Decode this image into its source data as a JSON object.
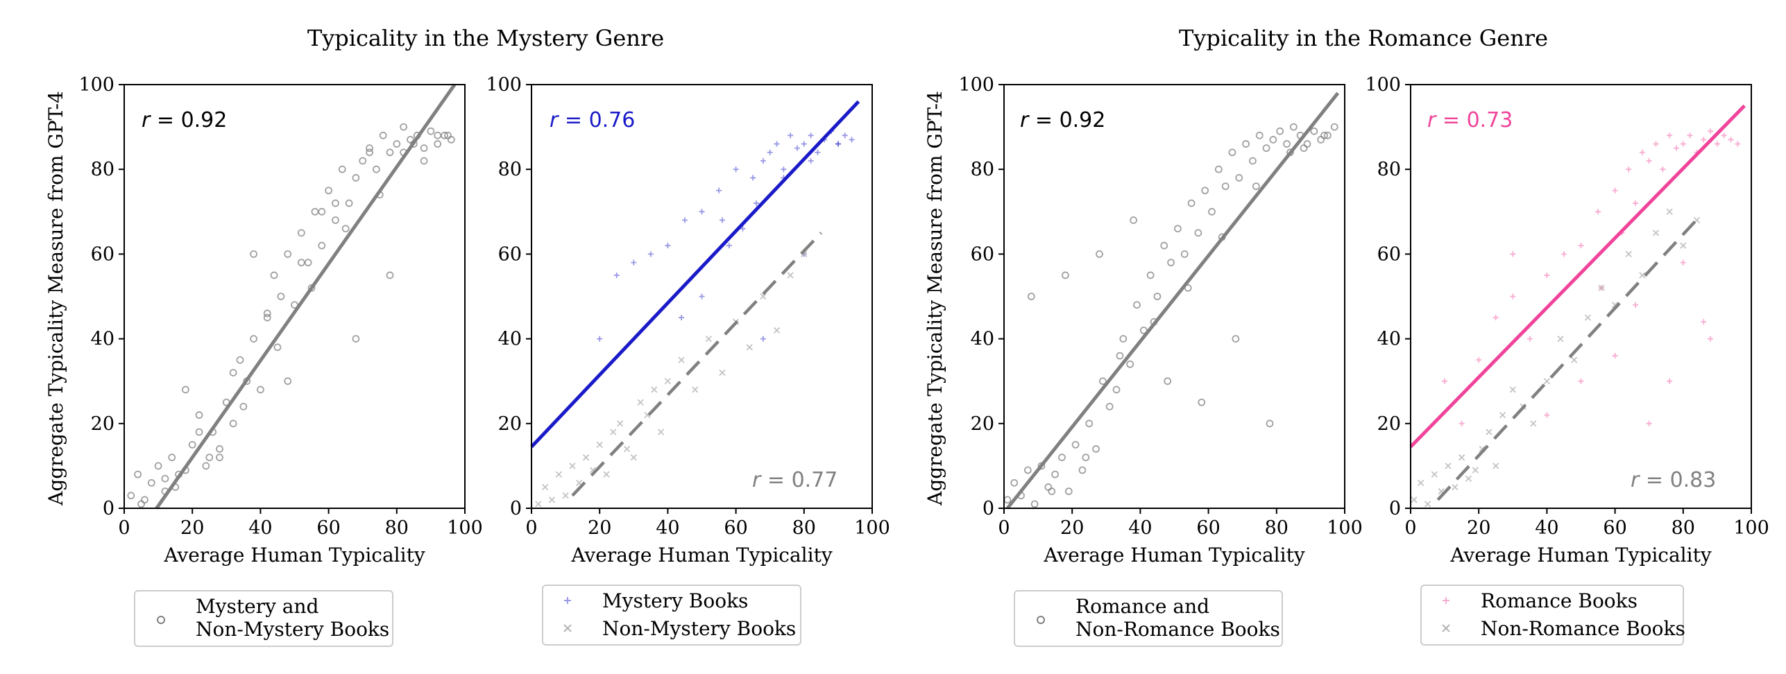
{
  "figure": {
    "mystery_title": "Typicality in the Mystery Genre",
    "romance_title": "Typicality in the Romance Genre",
    "ylabel": "Aggregate Typicality Measure from GPT-4",
    "xlabel": "Average Human Typicality"
  },
  "colors": {
    "gray": "#808080",
    "light_gray": "#b4b4b4",
    "mystery_blue": "#1a1ac8",
    "romance_pink": "#f0449a"
  },
  "chart_data": [
    {
      "type": "scatter",
      "panel": "mystery-all",
      "xlabel": "Average Human Typicality",
      "ylabel": "Aggregate Typicality Measure from GPT-4",
      "xlim": [
        0,
        100
      ],
      "ylim": [
        0,
        100
      ],
      "xticks": [
        0,
        20,
        40,
        60,
        80,
        100
      ],
      "yticks": [
        0,
        20,
        40,
        60,
        80,
        100
      ],
      "r_label": "r = 0.92",
      "legend": [
        "Mystery and",
        "Non-Mystery Books"
      ],
      "series": [
        {
          "marker": "circle",
          "color": "#808080",
          "fit": [
            9.5,
            0,
            97,
            100
          ],
          "x": [
            2,
            4,
            6,
            8,
            10,
            12,
            14,
            16,
            18,
            20,
            22,
            24,
            26,
            28,
            30,
            32,
            34,
            36,
            38,
            40,
            42,
            44,
            46,
            48,
            50,
            52,
            54,
            56,
            58,
            60,
            62,
            64,
            66,
            68,
            70,
            72,
            74,
            76,
            78,
            80,
            82,
            84,
            86,
            88,
            90,
            92,
            94,
            96,
            5,
            15,
            25,
            35,
            45,
            55,
            65,
            75,
            85,
            95,
            12,
            22,
            32,
            42,
            52,
            62,
            72,
            82,
            92,
            18,
            28,
            38,
            48,
            58,
            68,
            78,
            88
          ],
          "y": [
            3,
            8,
            2,
            6,
            10,
            4,
            12,
            8,
            9,
            15,
            22,
            10,
            18,
            12,
            25,
            20,
            35,
            30,
            40,
            28,
            45,
            55,
            50,
            60,
            48,
            65,
            58,
            70,
            62,
            75,
            68,
            80,
            72,
            78,
            82,
            85,
            80,
            88,
            84,
            86,
            90,
            87,
            88,
            85,
            89,
            86,
            88,
            87,
            1,
            5,
            12,
            24,
            38,
            52,
            66,
            74,
            86,
            88,
            7,
            18,
            32,
            46,
            58,
            72,
            84,
            84,
            88,
            28,
            14,
            60,
            30,
            70,
            40,
            55,
            82
          ]
        }
      ]
    },
    {
      "type": "scatter",
      "panel": "mystery-split",
      "xlabel": "Average Human Typicality",
      "xlim": [
        0,
        100
      ],
      "ylim": [
        0,
        100
      ],
      "xticks": [
        0,
        20,
        40,
        60,
        80,
        100
      ],
      "yticks": [
        0,
        20,
        40,
        60,
        80,
        100
      ],
      "r_labels": [
        "r = 0.76",
        "r = 0.77"
      ],
      "series": [
        {
          "name": "Mystery Books",
          "marker": "plus",
          "color": "#1a1ac8",
          "fit": [
            0,
            14.5,
            96,
            96
          ],
          "x": [
            20,
            25,
            30,
            35,
            40,
            45,
            50,
            55,
            60,
            62,
            65,
            68,
            70,
            72,
            74,
            76,
            78,
            80,
            82,
            84,
            86,
            88,
            90,
            92,
            94,
            50,
            58,
            66,
            74,
            82,
            90,
            44,
            56,
            68,
            80
          ],
          "y": [
            40,
            55,
            58,
            60,
            62,
            68,
            70,
            75,
            80,
            66,
            78,
            82,
            84,
            86,
            80,
            88,
            85,
            86,
            88,
            84,
            87,
            89,
            86,
            88,
            87,
            50,
            62,
            72,
            78,
            82,
            86,
            45,
            68,
            40,
            60
          ]
        },
        {
          "name": "Non-Mystery Books",
          "marker": "x",
          "color": "#b4b4b4",
          "fit": [
            12,
            3,
            85,
            65
          ],
          "x": [
            2,
            4,
            6,
            8,
            10,
            12,
            14,
            16,
            18,
            20,
            22,
            24,
            26,
            28,
            30,
            32,
            34,
            36,
            38,
            40,
            44,
            48,
            52,
            56,
            60,
            64,
            68,
            72,
            76,
            80
          ],
          "y": [
            1,
            5,
            2,
            8,
            3,
            10,
            6,
            12,
            9,
            15,
            8,
            18,
            20,
            14,
            12,
            25,
            22,
            28,
            18,
            30,
            35,
            28,
            40,
            32,
            44,
            38,
            50,
            42,
            55,
            60
          ]
        }
      ]
    },
    {
      "type": "scatter",
      "panel": "romance-all",
      "xlabel": "Average Human Typicality",
      "ylabel": "Aggregate Typicality Measure from GPT-4",
      "xlim": [
        0,
        100
      ],
      "ylim": [
        0,
        100
      ],
      "xticks": [
        0,
        20,
        40,
        60,
        80,
        100
      ],
      "yticks": [
        0,
        20,
        40,
        60,
        80,
        100
      ],
      "r_label": "r = 0.92",
      "legend": [
        "Romance and",
        "Non-Romance Books"
      ],
      "series": [
        {
          "marker": "circle",
          "color": "#808080",
          "fit": [
            1,
            0,
            98,
            98
          ],
          "x": [
            1,
            3,
            5,
            7,
            9,
            11,
            13,
            15,
            17,
            19,
            21,
            23,
            25,
            27,
            29,
            31,
            33,
            35,
            37,
            39,
            41,
            43,
            45,
            47,
            49,
            51,
            53,
            55,
            57,
            59,
            61,
            63,
            65,
            67,
            69,
            71,
            73,
            75,
            77,
            79,
            81,
            83,
            85,
            87,
            89,
            91,
            93,
            95,
            97,
            8,
            18,
            28,
            38,
            48,
            58,
            68,
            78,
            88,
            14,
            24,
            34,
            44,
            54,
            64,
            74,
            84,
            94
          ],
          "y": [
            2,
            6,
            3,
            9,
            1,
            10,
            5,
            8,
            12,
            4,
            15,
            9,
            20,
            14,
            30,
            24,
            28,
            40,
            34,
            48,
            42,
            55,
            50,
            62,
            58,
            66,
            60,
            72,
            65,
            75,
            70,
            80,
            76,
            84,
            78,
            86,
            82,
            88,
            85,
            87,
            89,
            86,
            90,
            88,
            86,
            89,
            87,
            88,
            90,
            50,
            55,
            60,
            68,
            30,
            25,
            40,
            20,
            85,
            4,
            12,
            36,
            44,
            52,
            64,
            76,
            84,
            88
          ]
        }
      ]
    },
    {
      "type": "scatter",
      "panel": "romance-split",
      "xlabel": "Average Human Typicality",
      "xlim": [
        0,
        100
      ],
      "ylim": [
        0,
        100
      ],
      "xticks": [
        0,
        20,
        40,
        60,
        80,
        100
      ],
      "yticks": [
        0,
        20,
        40,
        60,
        80,
        100
      ],
      "r_labels": [
        "r = 0.73",
        "r = 0.83"
      ],
      "series": [
        {
          "name": "Romance Books",
          "marker": "plus",
          "color": "#f0449a",
          "fit": [
            0,
            14.5,
            98,
            95
          ],
          "x": [
            10,
            15,
            20,
            25,
            30,
            35,
            40,
            45,
            50,
            55,
            60,
            62,
            64,
            66,
            68,
            70,
            72,
            74,
            76,
            78,
            80,
            82,
            84,
            86,
            88,
            90,
            92,
            94,
            96,
            40,
            50,
            60,
            70,
            80,
            88,
            30,
            56,
            66,
            76,
            86
          ],
          "y": [
            30,
            20,
            35,
            45,
            50,
            40,
            55,
            60,
            62,
            70,
            75,
            65,
            80,
            72,
            84,
            82,
            86,
            80,
            88,
            85,
            86,
            88,
            84,
            87,
            89,
            86,
            88,
            87,
            86,
            22,
            30,
            36,
            20,
            58,
            40,
            60,
            52,
            48,
            30,
            44
          ]
        },
        {
          "name": "Non-Romance Books",
          "marker": "x",
          "color": "#b4b4b4",
          "fit": [
            8,
            2,
            85,
            69
          ],
          "x": [
            1,
            3,
            5,
            7,
            9,
            11,
            13,
            15,
            17,
            19,
            21,
            23,
            25,
            27,
            30,
            33,
            36,
            40,
            44,
            48,
            52,
            56,
            60,
            64,
            68,
            72,
            76,
            80,
            84
          ],
          "y": [
            2,
            6,
            1,
            8,
            4,
            10,
            5,
            12,
            7,
            9,
            14,
            18,
            10,
            22,
            28,
            24,
            20,
            30,
            40,
            35,
            45,
            52,
            48,
            60,
            55,
            65,
            70,
            62,
            68
          ]
        }
      ]
    }
  ],
  "legends": {
    "mystery_all": {
      "line1": "Mystery and",
      "line2": "Non-Mystery Books"
    },
    "mystery_split": {
      "series1": "Mystery Books",
      "series2": "Non-Mystery Books"
    },
    "romance_all": {
      "line1": "Romance and",
      "line2": "Non-Romance Books"
    },
    "romance_split": {
      "series1": "Romance Books",
      "series2": "Non-Romance Books"
    }
  },
  "r_values": {
    "mystery_all": "0.92",
    "mystery_split_main": "0.76",
    "mystery_split_other": "0.77",
    "romance_all": "0.92",
    "romance_split_main": "0.73",
    "romance_split_other": "0.83"
  }
}
